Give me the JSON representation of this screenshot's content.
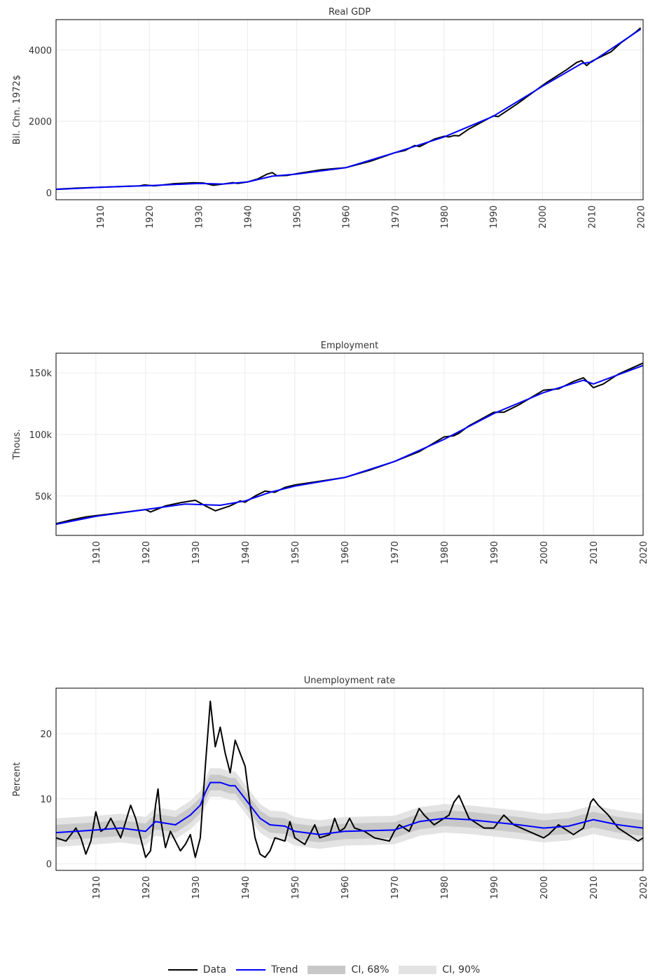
{
  "chart_data": [
    {
      "type": "line",
      "title": "Real GDP",
      "ylabel": "Bil. Chn. 1972$",
      "xlim": [
        1901,
        2020.5
      ],
      "ylim": [
        -200,
        4850
      ],
      "xticks": [
        1910,
        1920,
        1930,
        1940,
        1950,
        1960,
        1970,
        1980,
        1990,
        2000,
        2010,
        2020
      ],
      "xtick_labels": [
        "1910",
        "1920",
        "1930",
        "1940",
        "1950",
        "1960",
        "1970",
        "1980",
        "1990",
        "2000",
        "2010",
        "2020"
      ],
      "yticks": [
        0,
        2000,
        4000
      ],
      "ytick_labels": [
        "0",
        "2000",
        "4000"
      ],
      "grid": true,
      "series": [
        {
          "name": "Data",
          "color": "#000000",
          "points": [
            [
              1901,
              95
            ],
            [
              1905,
              125
            ],
            [
              1910,
              150
            ],
            [
              1915,
              175
            ],
            [
              1918,
              190
            ],
            [
              1919,
              215
            ],
            [
              1921,
              190
            ],
            [
              1925,
              250
            ],
            [
              1929,
              275
            ],
            [
              1931,
              270
            ],
            [
              1933,
              205
            ],
            [
              1935,
              240
            ],
            [
              1937,
              280
            ],
            [
              1938,
              255
            ],
            [
              1940,
              300
            ],
            [
              1942,
              380
            ],
            [
              1944,
              520
            ],
            [
              1945,
              560
            ],
            [
              1946,
              470
            ],
            [
              1948,
              480
            ],
            [
              1950,
              530
            ],
            [
              1955,
              640
            ],
            [
              1960,
              700
            ],
            [
              1965,
              880
            ],
            [
              1970,
              1120
            ],
            [
              1972,
              1180
            ],
            [
              1974,
              1320
            ],
            [
              1975,
              1290
            ],
            [
              1978,
              1500
            ],
            [
              1980,
              1580
            ],
            [
              1981,
              1560
            ],
            [
              1982,
              1600
            ],
            [
              1983,
              1590
            ],
            [
              1985,
              1780
            ],
            [
              1990,
              2150
            ],
            [
              1991,
              2130
            ],
            [
              1995,
              2500
            ],
            [
              2000,
              3000
            ],
            [
              2001,
              3100
            ],
            [
              2005,
              3450
            ],
            [
              2007,
              3650
            ],
            [
              2008,
              3700
            ],
            [
              2009,
              3560
            ],
            [
              2010,
              3680
            ],
            [
              2014,
              3950
            ],
            [
              2016,
              4200
            ],
            [
              2019,
              4500
            ],
            [
              2020,
              4620
            ]
          ]
        },
        {
          "name": "Trend",
          "color": "#0000ff",
          "points": [
            [
              1901,
              90
            ],
            [
              1910,
              148
            ],
            [
              1920,
              195
            ],
            [
              1930,
              255
            ],
            [
              1935,
              240
            ],
            [
              1940,
              300
            ],
            [
              1945,
              460
            ],
            [
              1950,
              520
            ],
            [
              1960,
              700
            ],
            [
              1970,
              1120
            ],
            [
              1980,
              1560
            ],
            [
              1990,
              2140
            ],
            [
              2000,
              2980
            ],
            [
              2008,
              3620
            ],
            [
              2010,
              3660
            ],
            [
              2020,
              4580
            ]
          ]
        }
      ]
    },
    {
      "type": "line",
      "title": "Employment",
      "ylabel": "Thous.",
      "xlim": [
        1902,
        2020
      ],
      "ylim": [
        18000,
        166000
      ],
      "xticks": [
        1910,
        1920,
        1930,
        1940,
        1950,
        1960,
        1970,
        1980,
        1990,
        2000,
        2010,
        2020
      ],
      "xtick_labels": [
        "1910",
        "1920",
        "1930",
        "1940",
        "1950",
        "1960",
        "1970",
        "1980",
        "1990",
        "2000",
        "2010",
        "2020"
      ],
      "yticks": [
        50000,
        100000,
        150000
      ],
      "ytick_labels": [
        "50k",
        "100k",
        "150k"
      ],
      "grid": true,
      "series": [
        {
          "name": "Data",
          "color": "#000000",
          "points": [
            [
              1902,
              27500
            ],
            [
              1905,
              30500
            ],
            [
              1908,
              33000
            ],
            [
              1912,
              35000
            ],
            [
              1916,
              37000
            ],
            [
              1920,
              39000
            ],
            [
              1921,
              37000
            ],
            [
              1924,
              42000
            ],
            [
              1927,
              44500
            ],
            [
              1930,
              46500
            ],
            [
              1932,
              42000
            ],
            [
              1934,
              38000
            ],
            [
              1937,
              42000
            ],
            [
              1939,
              46000
            ],
            [
              1940,
              45000
            ],
            [
              1942,
              50000
            ],
            [
              1944,
              54000
            ],
            [
              1946,
              53000
            ],
            [
              1948,
              57000
            ],
            [
              1950,
              59000
            ],
            [
              1955,
              62000
            ],
            [
              1960,
              65000
            ],
            [
              1965,
              71000
            ],
            [
              1970,
              78000
            ],
            [
              1975,
              86000
            ],
            [
              1980,
              98000
            ],
            [
              1982,
              99000
            ],
            [
              1983,
              101000
            ],
            [
              1985,
              107000
            ],
            [
              1990,
              118000
            ],
            [
              1992,
              118000
            ],
            [
              1995,
              124000
            ],
            [
              2000,
              136000
            ],
            [
              2003,
              137000
            ],
            [
              2006,
              143000
            ],
            [
              2008,
              146000
            ],
            [
              2010,
              138000
            ],
            [
              2012,
              141000
            ],
            [
              2015,
              149000
            ],
            [
              2020,
              158000
            ]
          ]
        },
        {
          "name": "Trend",
          "color": "#0000ff",
          "points": [
            [
              1902,
              27000
            ],
            [
              1910,
              33500
            ],
            [
              1920,
              39000
            ],
            [
              1928,
              43500
            ],
            [
              1935,
              42500
            ],
            [
              1940,
              46000
            ],
            [
              1945,
              53000
            ],
            [
              1950,
              58000
            ],
            [
              1960,
              65000
            ],
            [
              1970,
              78000
            ],
            [
              1980,
              96000
            ],
            [
              1990,
              117000
            ],
            [
              2000,
              134000
            ],
            [
              2008,
              144000
            ],
            [
              2010,
              141000
            ],
            [
              2020,
              156000
            ]
          ]
        }
      ]
    },
    {
      "type": "line",
      "title": "Unemployment rate",
      "ylabel": "Percent",
      "xlim": [
        1902,
        2020
      ],
      "ylim": [
        -1,
        27
      ],
      "xticks": [
        1910,
        1920,
        1930,
        1940,
        1950,
        1960,
        1970,
        1980,
        1990,
        2000,
        2010,
        2020
      ],
      "xtick_labels": [
        "1910",
        "1920",
        "1930",
        "1940",
        "1950",
        "1960",
        "1970",
        "1980",
        "1990",
        "2000",
        "2010",
        "2020"
      ],
      "yticks": [
        0,
        10,
        20
      ],
      "ytick_labels": [
        "0",
        "10",
        "20"
      ],
      "grid": true,
      "series": [
        {
          "name": "Data",
          "color": "#000000",
          "points": [
            [
              1902,
              4
            ],
            [
              1904,
              3.5
            ],
            [
              1906,
              5.5
            ],
            [
              1907,
              4
            ],
            [
              1908,
              1.5
            ],
            [
              1909,
              3.5
            ],
            [
              1910,
              8
            ],
            [
              1911,
              5
            ],
            [
              1912,
              5.5
            ],
            [
              1913,
              7
            ],
            [
              1914,
              5.5
            ],
            [
              1915,
              4
            ],
            [
              1916,
              6.5
            ],
            [
              1917,
              9
            ],
            [
              1918,
              7
            ],
            [
              1919,
              4
            ],
            [
              1920,
              1
            ],
            [
              1921,
              2
            ],
            [
              1922,
              9
            ],
            [
              1922.5,
              11.5
            ],
            [
              1923,
              7
            ],
            [
              1924,
              2.5
            ],
            [
              1925,
              5
            ],
            [
              1926,
              3.5
            ],
            [
              1927,
              2
            ],
            [
              1928,
              3
            ],
            [
              1929,
              4.5
            ],
            [
              1930,
              1
            ],
            [
              1931,
              4
            ],
            [
              1932,
              15
            ],
            [
              1933,
              25
            ],
            [
              1934,
              18
            ],
            [
              1935,
              21
            ],
            [
              1936,
              17
            ],
            [
              1937,
              14
            ],
            [
              1938,
              19
            ],
            [
              1939,
              17
            ],
            [
              1940,
              15
            ],
            [
              1941,
              9
            ],
            [
              1942,
              4
            ],
            [
              1943,
              1.5
            ],
            [
              1944,
              1
            ],
            [
              1945,
              2
            ],
            [
              1946,
              4
            ],
            [
              1948,
              3.5
            ],
            [
              1949,
              6.5
            ],
            [
              1950,
              4
            ],
            [
              1952,
              3
            ],
            [
              1954,
              6
            ],
            [
              1955,
              4
            ],
            [
              1957,
              4.5
            ],
            [
              1958,
              7
            ],
            [
              1959,
              5
            ],
            [
              1960,
              5.5
            ],
            [
              1961,
              7
            ],
            [
              1962,
              5.5
            ],
            [
              1964,
              5
            ],
            [
              1966,
              4
            ],
            [
              1969,
              3.5
            ],
            [
              1970,
              5
            ],
            [
              1971,
              6
            ],
            [
              1973,
              5
            ],
            [
              1975,
              8.5
            ],
            [
              1976,
              7.5
            ],
            [
              1978,
              6
            ],
            [
              1980,
              7
            ],
            [
              1981,
              7.5
            ],
            [
              1982,
              9.5
            ],
            [
              1983,
              10.5
            ],
            [
              1985,
              7
            ],
            [
              1988,
              5.5
            ],
            [
              1990,
              5.5
            ],
            [
              1992,
              7.5
            ],
            [
              1994,
              6
            ],
            [
              1997,
              5
            ],
            [
              2000,
              4
            ],
            [
              2001,
              4.5
            ],
            [
              2003,
              6
            ],
            [
              2006,
              4.5
            ],
            [
              2008,
              5.5
            ],
            [
              2009.5,
              9.5
            ],
            [
              2010,
              10
            ],
            [
              2011,
              9
            ],
            [
              2013,
              7.5
            ],
            [
              2015,
              5.5
            ],
            [
              2017,
              4.5
            ],
            [
              2019,
              3.5
            ],
            [
              2020,
              4
            ]
          ]
        },
        {
          "name": "Trend",
          "color": "#0000ff",
          "points": [
            [
              1902,
              4.8
            ],
            [
              1910,
              5.2
            ],
            [
              1915,
              5.5
            ],
            [
              1920,
              5
            ],
            [
              1922,
              6.5
            ],
            [
              1926,
              6
            ],
            [
              1929,
              7.5
            ],
            [
              1931,
              9
            ],
            [
              1932,
              11
            ],
            [
              1933,
              12.5
            ],
            [
              1935,
              12.5
            ],
            [
              1937,
              12
            ],
            [
              1938,
              12
            ],
            [
              1940,
              10
            ],
            [
              1943,
              7
            ],
            [
              1945,
              6
            ],
            [
              1948,
              5.8
            ],
            [
              1950,
              5
            ],
            [
              1955,
              4.5
            ],
            [
              1960,
              5
            ],
            [
              1970,
              5.2
            ],
            [
              1975,
              6.5
            ],
            [
              1980,
              7
            ],
            [
              1985,
              6.8
            ],
            [
              1990,
              6.4
            ],
            [
              1995,
              6
            ],
            [
              2000,
              5.5
            ],
            [
              2005,
              5.8
            ],
            [
              2010,
              6.8
            ],
            [
              2015,
              6
            ],
            [
              2020,
              5.5
            ]
          ]
        }
      ],
      "bands": [
        {
          "name": "CI, 90%",
          "color": "#e3e3e3",
          "halfwidth": 2.2
        },
        {
          "name": "CI, 68%",
          "color": "#c8c8c8",
          "halfwidth": 1.2
        }
      ]
    }
  ],
  "legend": {
    "placement": "bottom",
    "items": [
      {
        "key": "data",
        "label": "Data",
        "color": "#000000",
        "kind": "line"
      },
      {
        "key": "trend",
        "label": "Trend",
        "color": "#0000ff",
        "kind": "line"
      },
      {
        "key": "ci68",
        "label": "CI, 68%",
        "color": "#c8c8c8",
        "kind": "box"
      },
      {
        "key": "ci90",
        "label": "CI, 90%",
        "color": "#e3e3e3",
        "kind": "box"
      }
    ]
  }
}
